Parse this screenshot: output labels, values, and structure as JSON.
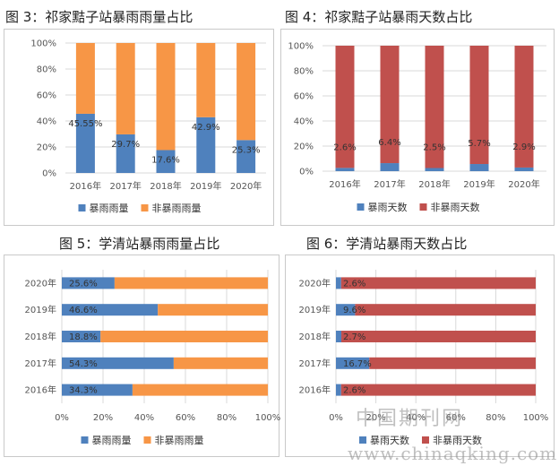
{
  "colors": {
    "blue": "#4f81bd",
    "orange": "#f79646",
    "red": "#c0504d",
    "grid": "#d9d9d9"
  },
  "titles": {
    "fig3": "图 3：祁家黠子站暴雨雨量占比",
    "fig4": "图 4：祁家黠子站暴雨天数占比",
    "fig5": "图 5：学清站暴雨雨量占比",
    "fig6": "图 6：学清站暴雨天数占比"
  },
  "watermark": {
    "line1": "中国期刊网",
    "line2": "www.chinaqking.com"
  },
  "chart_data": [
    {
      "id": "fig3",
      "type": "bar",
      "stacked": "percent",
      "orientation": "vertical",
      "categories": [
        "2016年",
        "2017年",
        "2018年",
        "2019年",
        "2020年"
      ],
      "series": [
        {
          "name": "暴雨雨量",
          "values": [
            45.55,
            29.7,
            17.6,
            42.9,
            25.3
          ],
          "color": "#4f81bd"
        },
        {
          "name": "非暴雨雨量",
          "values": [
            54.45,
            70.3,
            82.4,
            57.1,
            74.7
          ],
          "color": "#f79646"
        }
      ],
      "data_labels": [
        "45.55%",
        "29.7%",
        "17.6%",
        "42.9%",
        "25.3%"
      ],
      "y_ticks": [
        "0%",
        "20%",
        "40%",
        "60%",
        "80%",
        "100%"
      ],
      "ylim": [
        0,
        100
      ],
      "legend": "bottom"
    },
    {
      "id": "fig4",
      "type": "bar",
      "stacked": "percent",
      "orientation": "vertical",
      "categories": [
        "2016年",
        "2017年",
        "2018年",
        "2019年",
        "2020年"
      ],
      "series": [
        {
          "name": "暴雨天数",
          "values": [
            2.6,
            6.4,
            2.5,
            5.7,
            2.9
          ],
          "color": "#4f81bd"
        },
        {
          "name": "非暴雨天数",
          "values": [
            97.4,
            93.6,
            97.5,
            94.3,
            97.1
          ],
          "color": "#c0504d"
        }
      ],
      "data_labels": [
        "2.6%",
        "6.4%",
        "2.5%",
        "5.7%",
        "2.9%"
      ],
      "y_ticks": [
        "0%",
        "20%",
        "40%",
        "60%",
        "80%",
        "100%"
      ],
      "ylim": [
        0,
        100
      ],
      "legend": "bottom"
    },
    {
      "id": "fig5",
      "type": "bar",
      "stacked": "percent",
      "orientation": "horizontal",
      "categories": [
        "2020年",
        "2019年",
        "2018年",
        "2017年",
        "2016年"
      ],
      "series": [
        {
          "name": "暴雨雨量",
          "values": [
            25.6,
            46.6,
            18.8,
            54.3,
            34.3
          ],
          "color": "#4f81bd"
        },
        {
          "name": "非暴雨雨量",
          "values": [
            74.4,
            53.4,
            81.2,
            45.7,
            65.7
          ],
          "color": "#f79646"
        }
      ],
      "data_labels": [
        "25.6%",
        "46.6%",
        "18.8%",
        "54.3%",
        "34.3%"
      ],
      "x_ticks": [
        "0%",
        "20%",
        "40%",
        "60%",
        "80%",
        "100%"
      ],
      "xlim": [
        0,
        100
      ],
      "legend": "bottom"
    },
    {
      "id": "fig6",
      "type": "bar",
      "stacked": "percent",
      "orientation": "horizontal",
      "categories": [
        "2020年",
        "2019年",
        "2018年",
        "2017年",
        "2016年"
      ],
      "series": [
        {
          "name": "暴雨天数",
          "values": [
            2.6,
            9.6,
            2.7,
            16.7,
            2.6
          ],
          "color": "#4f81bd"
        },
        {
          "name": "非暴雨天数",
          "values": [
            97.4,
            90.4,
            97.3,
            83.3,
            97.4
          ],
          "color": "#c0504d"
        }
      ],
      "data_labels": [
        "2.6%",
        "9.6%",
        "2.7%",
        "16.7%",
        "2.6%"
      ],
      "x_ticks": [
        "0%",
        "20%",
        "40%",
        "60%",
        "80%",
        "100%"
      ],
      "xlim": [
        0,
        100
      ],
      "legend": "bottom"
    }
  ]
}
